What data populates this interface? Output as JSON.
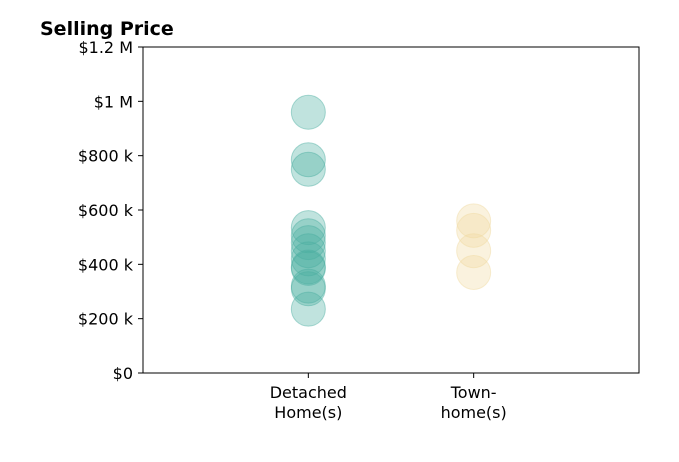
{
  "chart_data": {
    "type": "scatter",
    "title": "Selling Price",
    "xlabel": "",
    "ylabel": "",
    "ylim": [
      0,
      1200000
    ],
    "yticks": [
      {
        "value": 0,
        "label": "$0"
      },
      {
        "value": 200000,
        "label": "$200 k"
      },
      {
        "value": 400000,
        "label": "$400 k"
      },
      {
        "value": 600000,
        "label": "$600 k"
      },
      {
        "value": 800000,
        "label": "$800 k"
      },
      {
        "value": 1000000,
        "label": "$1 M"
      },
      {
        "value": 1200000,
        "label": "$1.2 M"
      }
    ],
    "categories": [
      {
        "label_lines": [
          "Detached",
          "Home(s)"
        ]
      },
      {
        "label_lines": [
          "Town-",
          "home(s)"
        ]
      }
    ],
    "xlim": [
      -1,
      2
    ],
    "grid": false,
    "series": [
      {
        "category_index": 0,
        "color": "#4aaea0",
        "values": [
          960000,
          785000,
          750000,
          535000,
          505000,
          480000,
          450000,
          420000,
          390000,
          385000,
          320000,
          310000,
          235000
        ]
      },
      {
        "category_index": 1,
        "color": "#f0d9a0",
        "values": [
          560000,
          525000,
          450000,
          370000
        ]
      }
    ]
  }
}
